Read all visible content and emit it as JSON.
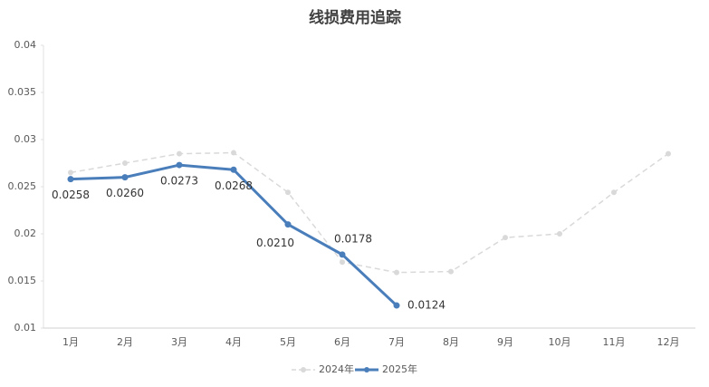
{
  "chart_data": {
    "type": "line",
    "title": "线损费用追踪",
    "categories": [
      "1月",
      "2月",
      "3月",
      "4月",
      "5月",
      "6月",
      "7月",
      "8月",
      "9月",
      "10月",
      "11月",
      "12月"
    ],
    "series": [
      {
        "name": "2024年",
        "color": "#d9d9d9",
        "dashed": true,
        "values": [
          0.0265,
          0.0275,
          0.0285,
          0.0286,
          0.0244,
          0.017,
          0.0159,
          0.016,
          0.0196,
          0.02,
          0.0244,
          0.0285
        ]
      },
      {
        "name": "2025年",
        "color": "#4a7ebb",
        "dashed": false,
        "values": [
          0.0258,
          0.026,
          0.0273,
          0.0268,
          0.021,
          0.0178,
          0.0124,
          null,
          null,
          null,
          null,
          null
        ],
        "value_labels": [
          "0.0258",
          "0.0260",
          "0.0273",
          "0.0268",
          "0.0210",
          "0.0178",
          "0.0124",
          null,
          null,
          null,
          null,
          null
        ]
      }
    ],
    "ylim": [
      0.01,
      0.04
    ],
    "yticks": [
      0.01,
      0.015,
      0.02,
      0.025,
      0.03,
      0.035,
      0.04
    ],
    "grid": false,
    "legend": "bottom"
  }
}
